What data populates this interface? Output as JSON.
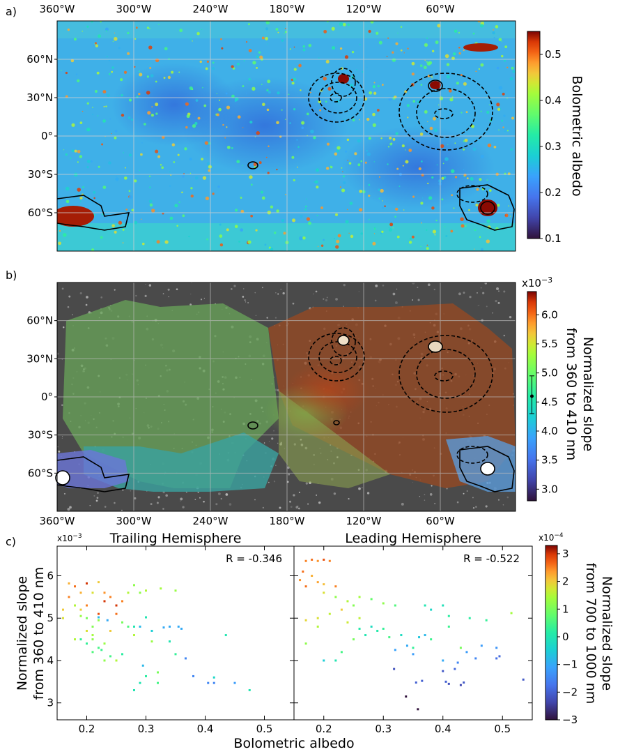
{
  "chart_data": [
    {
      "type": "heatmap",
      "panel_label": "a)",
      "description_kind": "map",
      "x_tick_labels": [
        "360°W",
        "300°W",
        "240°W",
        "180°W",
        "120°W",
        "60°W"
      ],
      "x_ticks": [
        360,
        300,
        240,
        180,
        120,
        60
      ],
      "y_tick_labels": [
        "60°N",
        "30°N",
        "0°",
        "30°S",
        "60°S"
      ],
      "y_ticks": [
        60,
        30,
        0,
        -30,
        -60
      ],
      "xlim": [
        360,
        0
      ],
      "ylim": [
        -90,
        90
      ],
      "colorbar": {
        "label": "Bolometric albedo",
        "ticks": [
          0.1,
          0.2,
          0.3,
          0.4,
          0.5
        ],
        "tick_labels": [
          "0.1",
          "0.2",
          "0.3",
          "0.4",
          "0.5"
        ],
        "range": [
          0.1,
          0.55
        ],
        "colormap": "turbo"
      }
    },
    {
      "type": "heatmap",
      "panel_label": "b)",
      "description_kind": "map",
      "x_tick_labels": [
        "360°W",
        "300°W",
        "240°W",
        "180°W",
        "120°W",
        "60°W"
      ],
      "x_ticks": [
        360,
        300,
        240,
        180,
        120,
        60
      ],
      "y_tick_labels": [
        "60°N",
        "30°N",
        "0°",
        "30°S",
        "60°S"
      ],
      "y_ticks": [
        60,
        30,
        0,
        -30,
        -60
      ],
      "xlim": [
        360,
        0
      ],
      "ylim": [
        -90,
        90
      ],
      "colorbar": {
        "label_line1": "Normalized slope",
        "label_line2": "from 360 to 410 nm",
        "multiplier": "x10",
        "multiplier_exp": "−3",
        "ticks": [
          3.0,
          3.5,
          4.0,
          4.5,
          5.0,
          5.5,
          6.0
        ],
        "tick_labels": [
          "3.0",
          "3.5",
          "4.0",
          "4.5",
          "5.0",
          "5.5",
          "6.0"
        ],
        "range": [
          2.8,
          6.4
        ],
        "error_bar": {
          "value": 4.6,
          "low": 4.3,
          "high": 4.95
        },
        "colormap": "turbo"
      }
    },
    {
      "type": "scatter",
      "panel_label": "c)",
      "title": "Trailing Hemisphere",
      "annotation": "R = -0.346",
      "xlabel": "Bolometric albedo",
      "ylabel_line1": "Normalized slope",
      "ylabel_line2": "from 360 to 410 nm",
      "y_multiplier": "x10",
      "y_multiplier_exp": "−3",
      "xlim": [
        0.15,
        0.55
      ],
      "ylim": [
        2.6,
        6.7
      ],
      "x_ticks": [
        0.2,
        0.3,
        0.4,
        0.5
      ],
      "x_tick_labels": [
        "0.2",
        "0.3",
        "0.4",
        "0.5"
      ],
      "y_ticks": [
        3,
        4,
        5,
        6
      ],
      "y_tick_labels": [
        "3",
        "4",
        "5",
        "6"
      ],
      "points_format": "[albedo, slope_360_410 (x1e-3), slope_700_1000 (x1e-4)]",
      "points": [
        [
          0.17,
          5.82,
          2.2
        ],
        [
          0.18,
          5.75,
          2.6
        ],
        [
          0.2,
          5.82,
          3
        ],
        [
          0.22,
          5.85,
          2
        ],
        [
          0.19,
          5.2,
          2
        ],
        [
          0.2,
          5.0,
          1
        ],
        [
          0.21,
          4.8,
          1.1
        ],
        [
          0.21,
          4.5,
          1.2
        ],
        [
          0.22,
          4.3,
          0.5
        ],
        [
          0.2,
          4.4,
          0.3
        ],
        [
          0.23,
          5.4,
          3
        ],
        [
          0.24,
          5.5,
          2.5
        ],
        [
          0.22,
          5.1,
          2.8
        ],
        [
          0.18,
          5.3,
          1.5
        ],
        [
          0.16,
          5.2,
          2
        ],
        [
          0.16,
          5.0,
          1.8
        ],
        [
          0.25,
          5.3,
          3
        ],
        [
          0.26,
          5.4,
          2.5
        ],
        [
          0.27,
          5.6,
          1.5
        ],
        [
          0.28,
          5.78,
          1.2
        ],
        [
          0.29,
          5.6,
          1.2
        ],
        [
          0.3,
          5.65,
          1.5
        ],
        [
          0.325,
          5.7,
          1.4
        ],
        [
          0.35,
          5.65,
          1.3
        ],
        [
          0.26,
          4.9,
          1.0
        ],
        [
          0.28,
          4.8,
          0
        ],
        [
          0.29,
          4.8,
          -0.8
        ],
        [
          0.3,
          5.02,
          0
        ],
        [
          0.31,
          4.7,
          -0.5
        ],
        [
          0.33,
          4.78,
          -1
        ],
        [
          0.34,
          4.8,
          -1
        ],
        [
          0.355,
          4.8,
          -1
        ],
        [
          0.36,
          4.75,
          -1
        ],
        [
          0.435,
          4.6,
          0
        ],
        [
          0.35,
          4.15,
          0.3
        ],
        [
          0.367,
          4.05,
          -1.5
        ],
        [
          0.38,
          3.63,
          -1.5
        ],
        [
          0.405,
          3.47,
          -1.5
        ],
        [
          0.415,
          3.6,
          -0.3
        ],
        [
          0.415,
          3.47,
          -1.5
        ],
        [
          0.45,
          3.47,
          -1.2
        ],
        [
          0.475,
          3.3,
          0
        ],
        [
          0.28,
          3.3,
          0
        ],
        [
          0.29,
          3.47,
          0
        ],
        [
          0.3,
          3.63,
          0.2
        ],
        [
          0.32,
          3.47,
          0.5
        ],
        [
          0.32,
          3.72,
          1
        ],
        [
          0.295,
          3.88,
          -0.8
        ],
        [
          0.25,
          4.0,
          1.5
        ],
        [
          0.23,
          4.0,
          1.2
        ],
        [
          0.24,
          4.1,
          0.5
        ],
        [
          0.26,
          4.15,
          0.2
        ],
        [
          0.31,
          4.45,
          1.3
        ],
        [
          0.34,
          4.45,
          0
        ],
        [
          0.18,
          4.5,
          1.5
        ],
        [
          0.2,
          4.7,
          1.8
        ],
        [
          0.17,
          5.5,
          2.5
        ],
        [
          0.19,
          5.6,
          2.2
        ],
        [
          0.21,
          5.6,
          1.8
        ],
        [
          0.23,
          5.6,
          2.4
        ],
        [
          0.2,
          5.3,
          2.5
        ],
        [
          0.22,
          4.95,
          1.2
        ],
        [
          0.19,
          5.05,
          1.3
        ],
        [
          0.21,
          4.6,
          1.4
        ],
        [
          0.23,
          4.4,
          1.3
        ],
        [
          0.225,
          4.25,
          0.4
        ],
        [
          0.21,
          4.2,
          0.6
        ],
        [
          0.19,
          4.5,
          0.3
        ],
        [
          0.24,
          4.7,
          2
        ],
        [
          0.25,
          5.1,
          2.6
        ],
        [
          0.22,
          5.02,
          -0.8
        ],
        [
          0.235,
          4.95,
          -1
        ],
        [
          0.27,
          4.8,
          0.6
        ],
        [
          0.28,
          4.6,
          1.5
        ]
      ]
    },
    {
      "type": "scatter",
      "title": "Leading Hemisphere",
      "annotation": "R = -0.522",
      "xlabel": "Bolometric albedo",
      "xlim": [
        0.15,
        0.55
      ],
      "ylim": [
        2.6,
        6.7
      ],
      "x_ticks": [
        0.2,
        0.3,
        0.4,
        0.5
      ],
      "x_tick_labels": [
        "0.2",
        "0.3",
        "0.4",
        "0.5"
      ],
      "points_format": "[albedo, slope_360_410 (x1e-3), slope_700_1000 (x1e-4)]",
      "points": [
        [
          0.17,
          6.35,
          2.5
        ],
        [
          0.18,
          6.38,
          2.6
        ],
        [
          0.19,
          6.35,
          2.4
        ],
        [
          0.2,
          6.38,
          2.8
        ],
        [
          0.21,
          6.35,
          2.5
        ],
        [
          0.165,
          6.1,
          2.6
        ],
        [
          0.18,
          6.0,
          2.2
        ],
        [
          0.16,
          5.9,
          2.4
        ],
        [
          0.17,
          5.75,
          2.6
        ],
        [
          0.19,
          5.85,
          2.3
        ],
        [
          0.2,
          5.8,
          2.1
        ],
        [
          0.22,
          5.75,
          2.5
        ],
        [
          0.2,
          5.6,
          1.8
        ],
        [
          0.22,
          5.5,
          1.2
        ],
        [
          0.24,
          5.4,
          1.5
        ],
        [
          0.25,
          5.3,
          1.1
        ],
        [
          0.23,
          5.2,
          2
        ],
        [
          0.21,
          5.1,
          1.6
        ],
        [
          0.19,
          5.0,
          1.8
        ],
        [
          0.17,
          4.95,
          1.9
        ],
        [
          0.26,
          5.5,
          1.4
        ],
        [
          0.28,
          5.45,
          0.8
        ],
        [
          0.3,
          5.35,
          1.2
        ],
        [
          0.32,
          5.3,
          0.6
        ],
        [
          0.26,
          5.0,
          1.6
        ],
        [
          0.28,
          4.8,
          -0.2
        ],
        [
          0.29,
          4.7,
          0.1
        ],
        [
          0.27,
          4.6,
          0
        ],
        [
          0.25,
          4.5,
          1.0
        ],
        [
          0.3,
          4.75,
          0.3
        ],
        [
          0.31,
          4.55,
          0.5
        ],
        [
          0.33,
          4.6,
          -0.2
        ],
        [
          0.34,
          4.35,
          -1.0
        ],
        [
          0.35,
          4.3,
          0.3
        ],
        [
          0.36,
          4.55,
          -0.6
        ],
        [
          0.37,
          5.3,
          0
        ],
        [
          0.38,
          5.2,
          -0.3
        ],
        [
          0.4,
          5.3,
          -0.1
        ],
        [
          0.41,
          5.05,
          0.2
        ],
        [
          0.41,
          4.8,
          0.4
        ],
        [
          0.43,
          4.3,
          1.0
        ],
        [
          0.445,
          5.0,
          0.2
        ],
        [
          0.473,
          4.95,
          0.3
        ],
        [
          0.515,
          5.12,
          1.4
        ],
        [
          0.465,
          4.35,
          -1.2
        ],
        [
          0.49,
          4.3,
          -1.3
        ],
        [
          0.49,
          4.05,
          -1.8
        ],
        [
          0.495,
          4.1,
          -1.9
        ],
        [
          0.455,
          4.05,
          -1.5
        ],
        [
          0.44,
          4.2,
          -1.2
        ],
        [
          0.425,
          3.95,
          -1.5
        ],
        [
          0.42,
          3.8,
          -1.9
        ],
        [
          0.4,
          3.75,
          -2.1
        ],
        [
          0.405,
          3.5,
          -2.0
        ],
        [
          0.41,
          3.45,
          -2.2
        ],
        [
          0.43,
          3.42,
          -2.3
        ],
        [
          0.435,
          3.48,
          -2.1
        ],
        [
          0.355,
          3.48,
          -2.0
        ],
        [
          0.365,
          3.52,
          -2.0
        ],
        [
          0.318,
          3.8,
          -2.2
        ],
        [
          0.338,
          3.15,
          -3
        ],
        [
          0.358,
          2.85,
          -3
        ],
        [
          0.535,
          3.55,
          -2.1
        ],
        [
          0.4,
          4.0,
          -1.0
        ],
        [
          0.2,
          4.0,
          -0.5
        ],
        [
          0.22,
          4.0,
          0
        ],
        [
          0.17,
          4.4,
          1.2
        ],
        [
          0.19,
          4.8,
          1.5
        ],
        [
          0.24,
          4.9,
          1.7
        ],
        [
          0.26,
          4.75,
          0.1
        ],
        [
          0.32,
          4.25,
          -1.1
        ],
        [
          0.35,
          4.15,
          -1.2
        ],
        [
          0.37,
          4.6,
          -0.8
        ],
        [
          0.38,
          4.5,
          0.4
        ],
        [
          0.23,
          4.2,
          0.5
        ]
      ]
    }
  ],
  "colorbar_c": {
    "label_line1": "Normalized slope",
    "label_line2": "from 700 to 1000 nm",
    "multiplier": "x10",
    "multiplier_exp": "−4",
    "ticks": [
      -3,
      -2,
      -1,
      0,
      1,
      2,
      3
    ],
    "tick_labels": [
      "−3",
      "−2",
      "−1",
      "0",
      "1",
      "2",
      "3"
    ],
    "range": [
      -3,
      3.3
    ]
  }
}
